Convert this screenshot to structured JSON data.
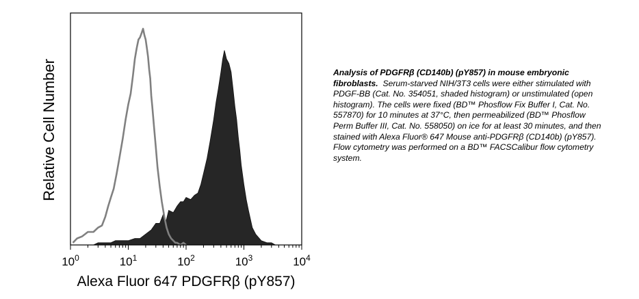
{
  "chart_data": {
    "type": "area",
    "title": "",
    "xlabel": "Alexa Fluor 647 PDGFRβ (pY857)",
    "ylabel": "Relative Cell Number",
    "x_scale": "log",
    "xlim": [
      1,
      10000
    ],
    "ylim": [
      0,
      1
    ],
    "x_ticks": [
      {
        "value": 1,
        "base": "10",
        "exp": "0"
      },
      {
        "value": 10,
        "base": "10",
        "exp": "1"
      },
      {
        "value": 100,
        "base": "10",
        "exp": "2"
      },
      {
        "value": 1000,
        "base": "10",
        "exp": "3"
      },
      {
        "value": 10000,
        "base": "10",
        "exp": "4"
      }
    ],
    "grid": false,
    "legend": "none",
    "series": [
      {
        "style": "open",
        "color": "#808080",
        "x": [
          1.1,
          1.3,
          1.6,
          2.0,
          2.5,
          3.0,
          3.5,
          4.0,
          4.5,
          5.0,
          5.6,
          6.3,
          7.0,
          8.0,
          9.0,
          10.0,
          11.0,
          12.0,
          13.0,
          14.0,
          15.0,
          16.0,
          17.0,
          18.0,
          19.0,
          20.0,
          21.0,
          22.0,
          23.0,
          24.0,
          25.0,
          26.0,
          28.0,
          30.0,
          32.0,
          35.0,
          38.0,
          42.0,
          46.0,
          50.0,
          55.0,
          60.0,
          65.0,
          70.0,
          80.0,
          90.0,
          100.0
        ],
        "y": [
          0.01,
          0.03,
          0.04,
          0.06,
          0.06,
          0.08,
          0.09,
          0.13,
          0.18,
          0.22,
          0.26,
          0.33,
          0.4,
          0.49,
          0.58,
          0.65,
          0.7,
          0.78,
          0.86,
          0.91,
          0.95,
          0.96,
          0.98,
          1.0,
          0.97,
          0.95,
          0.91,
          0.87,
          0.81,
          0.77,
          0.69,
          0.64,
          0.54,
          0.45,
          0.36,
          0.27,
          0.2,
          0.13,
          0.08,
          0.05,
          0.03,
          0.02,
          0.01,
          0.01,
          0.0,
          0.01,
          0.0
        ]
      },
      {
        "style": "shaded",
        "color": "#262626",
        "x": [
          2.5,
          3.0,
          4.0,
          5.0,
          6.0,
          8.0,
          10.0,
          13.0,
          16.0,
          20.0,
          25.0,
          30.0,
          35.0,
          40.0,
          45.0,
          50.0,
          60.0,
          70.0,
          80.0,
          90.0,
          100.0,
          120.0,
          140.0,
          160.0,
          180.0,
          200.0,
          230.0,
          260.0,
          300.0,
          330.0,
          360.0,
          400.0,
          430.0,
          460.0,
          500.0,
          550.0,
          600.0,
          650.0,
          700.0,
          750.0,
          800.0,
          850.0,
          900.0,
          1000.0,
          1100.0,
          1200.0,
          1400.0,
          1600.0,
          2000.0,
          2500.0,
          3000.0,
          3500.0
        ],
        "y": [
          0.0,
          0.01,
          0.01,
          0.01,
          0.02,
          0.02,
          0.02,
          0.03,
          0.03,
          0.05,
          0.07,
          0.1,
          0.1,
          0.14,
          0.11,
          0.16,
          0.15,
          0.18,
          0.2,
          0.2,
          0.22,
          0.21,
          0.23,
          0.24,
          0.28,
          0.33,
          0.4,
          0.48,
          0.58,
          0.66,
          0.72,
          0.8,
          0.86,
          0.9,
          0.86,
          0.84,
          0.8,
          0.72,
          0.64,
          0.58,
          0.5,
          0.44,
          0.37,
          0.28,
          0.21,
          0.16,
          0.08,
          0.05,
          0.02,
          0.01,
          0.01,
          0.0
        ]
      }
    ]
  },
  "caption": {
    "bold": "Analysis of PDGFRβ (CD140b) (pY857) in mouse embryonic fibroblasts.",
    "text": "Serum-starved NIH/3T3 cells were either stimulated with PDGF-BB (Cat. No. 354051, shaded histogram) or unstimulated (open histogram).  The cells were fixed (BD™ Phosflow Fix Buffer I, Cat. No. 557870) for 10 minutes at 37°C, then permeabilized (BD™ Phosflow Perm Buffer III, Cat. No. 558050) on ice for at least 30 minutes, and then stained with Alexa Fluor® 647 Mouse anti-PDGFRβ (CD140b) (pY857).  Flow cytometry was performed on a BD™ FACSCalibur flow cytometry system."
  }
}
